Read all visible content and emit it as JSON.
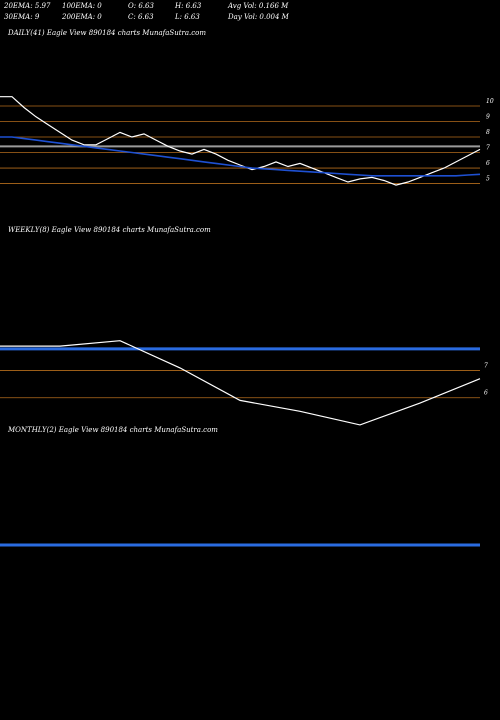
{
  "header": {
    "row1": [
      "20EMA: 5.97",
      "100EMA: 0",
      "O: 6.63",
      "H: 6.63",
      "Avg Vol: 0.166  M"
    ],
    "row2": [
      "30EMA: 9",
      "200EMA: 0",
      "C: 6.63",
      "L: 6.63",
      "Day Vol: 0.004  M"
    ]
  },
  "colors": {
    "background": "#000000",
    "price_line": "#ffffff",
    "ema_line": "#1e50d2",
    "level_line": "#b36b1c",
    "gray_level": "#9a9a9a",
    "blue_level": "#2a6be0",
    "text": "#ffffff"
  },
  "chart_data": [
    {
      "type": "line",
      "title": "DAILY(41) Eagle  View  890184  charts MunafaSutra.com",
      "ytick_labels": [
        "10",
        "9",
        "8",
        "7",
        "6",
        "5"
      ],
      "levels": [
        10,
        9,
        8,
        7,
        6,
        5
      ],
      "gray_level": 7.4,
      "series": [
        {
          "role": "price",
          "x": [
            0,
            1,
            2,
            3,
            4,
            5,
            6,
            7,
            8,
            9,
            10,
            11,
            12,
            13,
            14,
            15,
            16,
            17,
            18,
            19,
            20,
            21,
            22,
            23,
            24,
            25,
            26,
            27,
            28,
            29,
            30,
            31,
            32,
            33,
            34,
            35,
            36,
            37,
            38,
            39,
            40
          ],
          "values": [
            10.6,
            10.6,
            9.9,
            9.3,
            8.8,
            8.3,
            7.8,
            7.5,
            7.5,
            7.9,
            8.3,
            8.0,
            8.2,
            7.8,
            7.4,
            7.1,
            6.9,
            7.2,
            6.9,
            6.5,
            6.2,
            5.9,
            6.1,
            6.4,
            6.1,
            6.3,
            6.0,
            5.7,
            5.4,
            5.1,
            5.3,
            5.4,
            5.2,
            4.9,
            5.1,
            5.4,
            5.7,
            6.0,
            6.4,
            6.8,
            7.2
          ]
        },
        {
          "role": "ema",
          "x": [
            0,
            1,
            2,
            3,
            4,
            5,
            6,
            7,
            8,
            9,
            10,
            11,
            12,
            13,
            14,
            15,
            16,
            17,
            18,
            19,
            20,
            21,
            22,
            23,
            24,
            25,
            26,
            27,
            28,
            29,
            30,
            31,
            32,
            33,
            34,
            35,
            36,
            37,
            38,
            39,
            40
          ],
          "values": [
            8.0,
            8.0,
            7.9,
            7.8,
            7.7,
            7.6,
            7.5,
            7.4,
            7.3,
            7.2,
            7.1,
            7.0,
            6.9,
            6.8,
            6.7,
            6.6,
            6.5,
            6.4,
            6.3,
            6.2,
            6.1,
            6.0,
            5.95,
            5.9,
            5.85,
            5.8,
            5.75,
            5.7,
            5.65,
            5.6,
            5.55,
            5.5,
            5.5,
            5.5,
            5.5,
            5.5,
            5.5,
            5.5,
            5.5,
            5.55,
            5.6
          ]
        }
      ],
      "ylim": [
        4.2,
        10.9
      ]
    },
    {
      "type": "line",
      "title": "WEEKLY(8) Eagle  View  890184  charts MunafaSutra.com",
      "ytick_labels": [
        "7",
        "6"
      ],
      "levels": [
        7,
        6
      ],
      "blue_level": 7.8,
      "series": [
        {
          "role": "price",
          "x": [
            0,
            1,
            2,
            3,
            4,
            5,
            6,
            7,
            8
          ],
          "values": [
            7.9,
            7.9,
            8.1,
            7.1,
            5.9,
            5.5,
            5.0,
            5.8,
            6.7
          ]
        }
      ],
      "ylim": [
        4.0,
        9.6
      ]
    },
    {
      "type": "line",
      "title": "MONTHLY(2) Eagle  View  890184  charts MunafaSutra.com",
      "ytick_labels": [],
      "levels": [],
      "blue_level": 7.8,
      "series": [],
      "ylim": [
        4.0,
        11.6
      ]
    }
  ]
}
